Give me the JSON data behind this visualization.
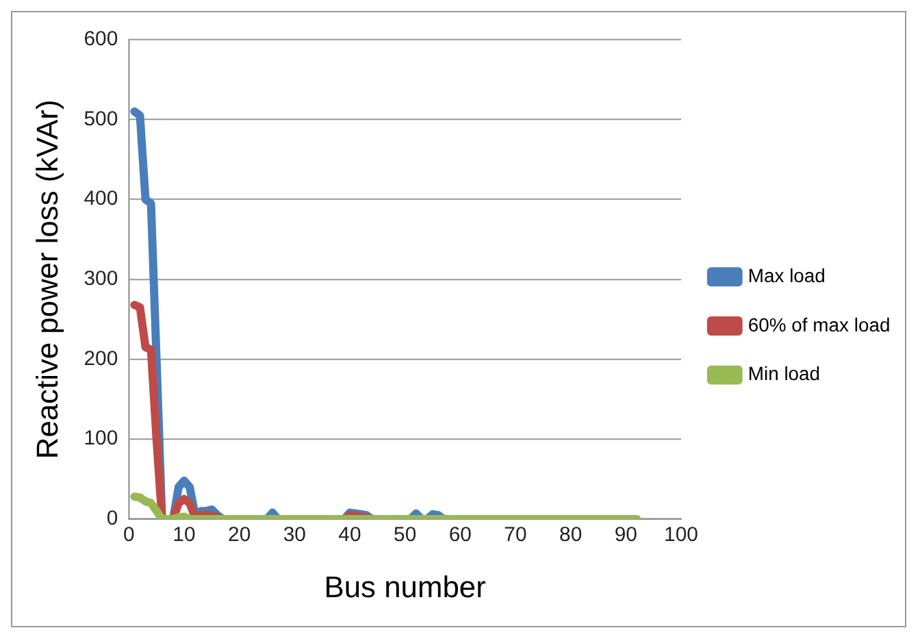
{
  "chart_data": {
    "type": "line",
    "xlabel": "Bus number",
    "ylabel": "Reactive power loss (kVAr)",
    "x": [
      1,
      2,
      3,
      4,
      5,
      6,
      7,
      8,
      9,
      10,
      11,
      12,
      13,
      14,
      15,
      16,
      17,
      18,
      19,
      20,
      21,
      22,
      23,
      24,
      25,
      26,
      27,
      28,
      29,
      30,
      31,
      32,
      33,
      34,
      35,
      36,
      37,
      38,
      39,
      40,
      41,
      42,
      43,
      44,
      45,
      46,
      47,
      48,
      49,
      50,
      51,
      52,
      53,
      54,
      55,
      56,
      57,
      58,
      59,
      60,
      61,
      62,
      63,
      64,
      65,
      66,
      67,
      68,
      69,
      70,
      71,
      72,
      73,
      74,
      75,
      76,
      77,
      78,
      79,
      80,
      81,
      82,
      83,
      84,
      85,
      86,
      87,
      88,
      89,
      90,
      91,
      92
    ],
    "series": [
      {
        "name": "Max load",
        "color": "#4a7ebb",
        "values": [
          510,
          505,
          400,
          395,
          200,
          0,
          null,
          0,
          40,
          48,
          40,
          5,
          10,
          10,
          12,
          5,
          0,
          null,
          null,
          null,
          null,
          null,
          null,
          null,
          0,
          8,
          0,
          null,
          null,
          null,
          null,
          null,
          null,
          null,
          null,
          null,
          null,
          null,
          0,
          8,
          7,
          6,
          5,
          0,
          null,
          null,
          null,
          null,
          null,
          null,
          0,
          7,
          0,
          0,
          6,
          5,
          0,
          null,
          null,
          null,
          null,
          null,
          null,
          null,
          null,
          null,
          null,
          null,
          null,
          null,
          null,
          null,
          null,
          null,
          null,
          null,
          null,
          null,
          null,
          null,
          null,
          null,
          null,
          null,
          null,
          null,
          null,
          null,
          null,
          null,
          null,
          null
        ]
      },
      {
        "name": "60% of max load",
        "color": "#be4b48",
        "values": [
          268,
          265,
          215,
          212,
          100,
          0,
          null,
          0,
          20,
          25,
          20,
          2,
          5,
          5,
          5,
          2,
          0,
          null,
          null,
          null,
          null,
          null,
          null,
          null,
          null,
          null,
          null,
          null,
          null,
          null,
          null,
          null,
          null,
          null,
          null,
          null,
          null,
          null,
          0,
          5,
          4,
          3,
          2,
          0,
          null,
          null,
          null,
          null,
          null,
          null,
          null,
          null,
          null,
          null,
          null,
          null,
          null,
          null,
          null,
          null,
          null,
          null,
          null,
          null,
          null,
          null,
          null,
          null,
          null,
          null,
          null,
          null,
          null,
          null,
          null,
          null,
          null,
          null,
          null,
          null,
          null,
          null,
          null,
          null,
          null,
          null,
          null,
          null,
          null,
          null,
          null,
          null
        ]
      },
      {
        "name": "Min load",
        "color": "#98b954",
        "values": [
          28,
          27,
          22,
          20,
          10,
          0,
          0,
          0,
          2,
          3,
          0,
          0,
          0,
          0,
          0,
          0,
          0,
          0,
          0,
          0,
          0,
          0,
          0,
          0,
          0,
          0,
          0,
          0,
          0,
          0,
          0,
          0,
          0,
          0,
          0,
          0,
          0,
          0,
          0,
          0,
          0,
          0,
          0,
          0,
          0,
          0,
          0,
          0,
          0,
          0,
          0,
          0,
          0,
          0,
          0,
          0,
          0,
          0,
          0,
          0,
          0,
          0,
          0,
          0,
          0,
          0,
          0,
          0,
          0,
          0,
          0,
          0,
          0,
          0,
          0,
          0,
          0,
          0,
          0,
          0,
          0,
          0,
          0,
          0,
          0,
          0,
          0,
          0,
          0,
          0,
          0,
          0
        ]
      }
    ],
    "xlim": [
      0,
      100
    ],
    "xticks": [
      0,
      10,
      20,
      30,
      40,
      50,
      60,
      70,
      80,
      90,
      100
    ],
    "ylim": [
      0,
      600
    ],
    "yticks": [
      0,
      100,
      200,
      300,
      400,
      500,
      600
    ],
    "grid": "y",
    "legend": "right",
    "marker": "none",
    "line_style": "solid"
  }
}
